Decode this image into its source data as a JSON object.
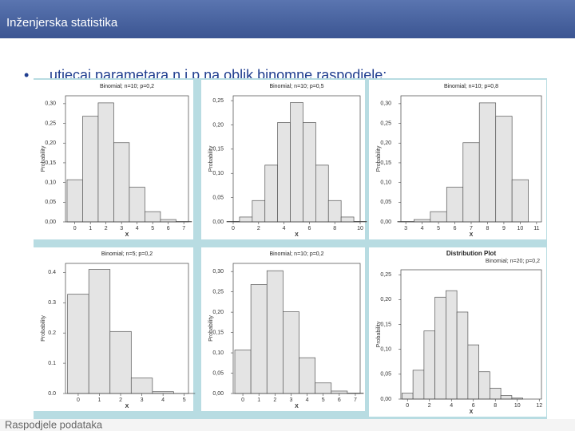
{
  "header": {
    "title": "Inženjerska statistika"
  },
  "bullet": "utjecaj parametara n i p na oblik binomne raspodjele:",
  "footer": "Raspodjele podataka",
  "chart_data": [
    {
      "type": "bar",
      "title": "Binomial; n=10; p=0,2",
      "xlabel": "X",
      "ylabel": "Probability",
      "color": "#e4e4e4",
      "x": [
        0,
        1,
        2,
        3,
        4,
        5,
        6,
        7
      ],
      "values": [
        0.107,
        0.268,
        0.302,
        0.201,
        0.088,
        0.026,
        0.006,
        0.001
      ],
      "xlim": [
        -0.6,
        7.3
      ],
      "xticks": [
        0,
        1,
        2,
        3,
        4,
        5,
        6,
        7
      ],
      "ylim": [
        0,
        0.32
      ],
      "yticks": [
        {
          "value": 0,
          "label": "0,00"
        },
        {
          "value": 0.05,
          "label": "0,05"
        },
        {
          "value": 0.1,
          "label": "0,10"
        },
        {
          "value": 0.15,
          "label": "0,15"
        },
        {
          "value": 0.2,
          "label": "0,20"
        },
        {
          "value": 0.25,
          "label": "0,25"
        },
        {
          "value": 0.3,
          "label": "0,30"
        }
      ]
    },
    {
      "type": "bar",
      "title": "Binomial; n=10; p=0,5",
      "xlabel": "X",
      "ylabel": "Probability",
      "color": "#e4e4e4",
      "x": [
        0,
        1,
        2,
        3,
        4,
        5,
        6,
        7,
        8,
        9,
        10
      ],
      "values": [
        0.001,
        0.01,
        0.044,
        0.117,
        0.205,
        0.246,
        0.205,
        0.117,
        0.044,
        0.01,
        0.001
      ],
      "xlim": [
        0,
        10
      ],
      "xticks": [
        0,
        2,
        4,
        6,
        8,
        10
      ],
      "ylim": [
        0,
        0.26
      ],
      "yticks": [
        {
          "value": 0,
          "label": "0,00"
        },
        {
          "value": 0.05,
          "label": "0,05"
        },
        {
          "value": 0.1,
          "label": "0,10"
        },
        {
          "value": 0.15,
          "label": "0,15"
        },
        {
          "value": 0.2,
          "label": "0,20"
        },
        {
          "value": 0.25,
          "label": "0,25"
        }
      ]
    },
    {
      "type": "bar",
      "title": "Binomial; n=10; p=0,8",
      "xlabel": "X",
      "ylabel": "Probability",
      "color": "#e4e4e4",
      "x": [
        3,
        4,
        5,
        6,
        7,
        8,
        9,
        10
      ],
      "values": [
        0.001,
        0.006,
        0.026,
        0.088,
        0.201,
        0.302,
        0.268,
        0.107
      ],
      "xlim": [
        2.7,
        11.3
      ],
      "xticks": [
        3,
        4,
        5,
        6,
        7,
        8,
        9,
        10,
        11
      ],
      "ylim": [
        0,
        0.32
      ],
      "yticks": [
        {
          "value": 0,
          "label": "0,00"
        },
        {
          "value": 0.05,
          "label": "0,05"
        },
        {
          "value": 0.1,
          "label": "0,10"
        },
        {
          "value": 0.15,
          "label": "0,15"
        },
        {
          "value": 0.2,
          "label": "0,20"
        },
        {
          "value": 0.25,
          "label": "0,25"
        },
        {
          "value": 0.3,
          "label": "0,30"
        }
      ]
    },
    {
      "type": "bar",
      "title": "Binomial; n=5; p=0,2",
      "xlabel": "X",
      "ylabel": "Probability",
      "color": "#e4e4e4",
      "x": [
        0,
        1,
        2,
        3,
        4,
        5
      ],
      "values": [
        0.328,
        0.41,
        0.205,
        0.051,
        0.006,
        0.0003
      ],
      "xlim": [
        -0.6,
        5.2
      ],
      "xticks": [
        0,
        1,
        2,
        3,
        4,
        5
      ],
      "ylim": [
        0,
        0.43
      ],
      "yticks": [
        {
          "value": 0,
          "label": "0.0"
        },
        {
          "value": 0.1,
          "label": "0.1"
        },
        {
          "value": 0.2,
          "label": "0.2"
        },
        {
          "value": 0.3,
          "label": "0.3"
        },
        {
          "value": 0.4,
          "label": "0.4"
        }
      ]
    },
    {
      "type": "bar",
      "title": "Binomial; n=10; p=0,2",
      "xlabel": "X",
      "ylabel": "Probability",
      "color": "#e4e4e4",
      "x": [
        0,
        1,
        2,
        3,
        4,
        5,
        6,
        7
      ],
      "values": [
        0.107,
        0.268,
        0.302,
        0.201,
        0.088,
        0.026,
        0.006,
        0.001
      ],
      "xlim": [
        -0.6,
        7.3
      ],
      "xticks": [
        0,
        1,
        2,
        3,
        4,
        5,
        6,
        7
      ],
      "ylim": [
        0,
        0.32
      ],
      "yticks": [
        {
          "value": 0,
          "label": "0,00"
        },
        {
          "value": 0.05,
          "label": "0,05"
        },
        {
          "value": 0.1,
          "label": "0,10"
        },
        {
          "value": 0.15,
          "label": "0,15"
        },
        {
          "value": 0.2,
          "label": "0,20"
        },
        {
          "value": 0.25,
          "label": "0,25"
        },
        {
          "value": 0.3,
          "label": "0,30"
        }
      ]
    },
    {
      "type": "bar",
      "title": "Distribution Plot",
      "subtitle": "Binomial; n=20; p=0,2",
      "xlabel": "X",
      "ylabel": "Probability",
      "color": "#e4e4e4",
      "x": [
        0,
        1,
        2,
        3,
        4,
        5,
        6,
        7,
        8,
        9,
        10
      ],
      "values": [
        0.012,
        0.058,
        0.137,
        0.205,
        0.218,
        0.175,
        0.109,
        0.055,
        0.022,
        0.007,
        0.002
      ],
      "xlim": [
        -0.6,
        12.2
      ],
      "xticks": [
        0,
        2,
        4,
        6,
        8,
        10,
        12
      ],
      "ylim": [
        0,
        0.26
      ],
      "yticks": [
        {
          "value": 0,
          "label": "0,00"
        },
        {
          "value": 0.05,
          "label": "0,05"
        },
        {
          "value": 0.1,
          "label": "0,10"
        },
        {
          "value": 0.15,
          "label": "0,15"
        },
        {
          "value": 0.2,
          "label": "0,20"
        },
        {
          "value": 0.25,
          "label": "0,25"
        }
      ]
    }
  ]
}
